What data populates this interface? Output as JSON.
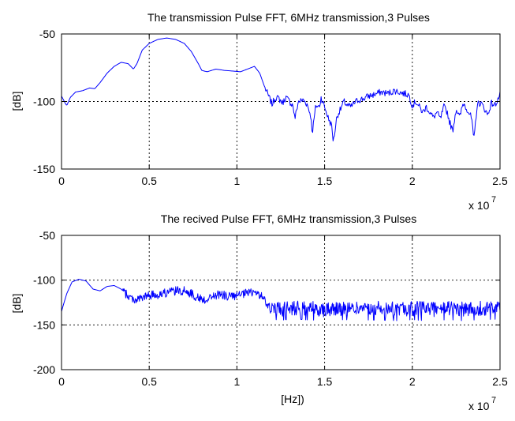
{
  "chart_data": [
    {
      "type": "line",
      "title": "The transmission Pulse FFT, 6MHz transmission,3 Pulses",
      "xlabel": "",
      "ylabel": "[dB]",
      "x_multiplier": "x 10",
      "x_exponent": "7",
      "xlim": [
        0,
        2.5
      ],
      "ylim": [
        -150,
        -50
      ],
      "xticks": [
        0,
        0.5,
        1,
        1.5,
        2,
        2.5
      ],
      "xtick_labels": [
        "0",
        "0.5",
        "1",
        "1.5",
        "2",
        "2.5"
      ],
      "yticks": [
        -150,
        -100,
        -50
      ],
      "ytick_labels": [
        "-150",
        "-100",
        "-50"
      ],
      "grid": true,
      "line_color": "#0000ff",
      "series_points": [
        [
          0.0,
          -96
        ],
        [
          0.02,
          -101
        ],
        [
          0.03,
          -103
        ],
        [
          0.05,
          -97
        ],
        [
          0.08,
          -93
        ],
        [
          0.12,
          -92
        ],
        [
          0.16,
          -90
        ],
        [
          0.19,
          -90.5
        ],
        [
          0.22,
          -86
        ],
        [
          0.26,
          -79
        ],
        [
          0.3,
          -74
        ],
        [
          0.34,
          -71
        ],
        [
          0.38,
          -72
        ],
        [
          0.41,
          -76
        ],
        [
          0.43,
          -72
        ],
        [
          0.46,
          -62
        ],
        [
          0.5,
          -57
        ],
        [
          0.55,
          -54
        ],
        [
          0.6,
          -53
        ],
        [
          0.65,
          -54
        ],
        [
          0.7,
          -57
        ],
        [
          0.74,
          -63
        ],
        [
          0.78,
          -72
        ],
        [
          0.8,
          -77
        ],
        [
          0.83,
          -78
        ],
        [
          0.88,
          -76
        ],
        [
          0.93,
          -77
        ],
        [
          0.98,
          -77.5
        ],
        [
          1.02,
          -78
        ],
        [
          1.06,
          -76
        ],
        [
          1.1,
          -74
        ],
        [
          1.13,
          -79
        ],
        [
          1.16,
          -90
        ],
        [
          1.18,
          -96
        ],
        [
          1.2,
          -102
        ],
        [
          1.22,
          -97
        ],
        [
          1.24,
          -98
        ],
        [
          1.26,
          -101
        ],
        [
          1.28,
          -97
        ],
        [
          1.3,
          -100
        ],
        [
          1.32,
          -103
        ],
        [
          1.33,
          -113
        ],
        [
          1.35,
          -100
        ],
        [
          1.38,
          -99
        ],
        [
          1.4,
          -102
        ],
        [
          1.42,
          -110
        ],
        [
          1.43,
          -123
        ],
        [
          1.45,
          -103
        ],
        [
          1.47,
          -104
        ],
        [
          1.48,
          -97
        ],
        [
          1.5,
          -104
        ],
        [
          1.52,
          -112
        ],
        [
          1.54,
          -118
        ],
        [
          1.55,
          -130
        ],
        [
          1.57,
          -111
        ],
        [
          1.59,
          -106
        ],
        [
          1.61,
          -100
        ],
        [
          1.63,
          -103
        ],
        [
          1.65,
          -104
        ],
        [
          1.67,
          -101
        ],
        [
          1.69,
          -99
        ],
        [
          1.72,
          -98
        ],
        [
          1.75,
          -96
        ],
        [
          1.78,
          -95
        ],
        [
          1.82,
          -93
        ],
        [
          1.86,
          -94
        ],
        [
          1.9,
          -92
        ],
        [
          1.95,
          -94
        ],
        [
          1.98,
          -95
        ],
        [
          2.0,
          -103
        ],
        [
          2.02,
          -100
        ],
        [
          2.04,
          -104
        ],
        [
          2.06,
          -108
        ],
        [
          2.08,
          -104
        ],
        [
          2.1,
          -108
        ],
        [
          2.12,
          -112
        ],
        [
          2.14,
          -108
        ],
        [
          2.16,
          -113
        ],
        [
          2.18,
          -104
        ],
        [
          2.2,
          -108
        ],
        [
          2.21,
          -114
        ],
        [
          2.23,
          -122
        ],
        [
          2.25,
          -105
        ],
        [
          2.27,
          -112
        ],
        [
          2.29,
          -101
        ],
        [
          2.31,
          -105
        ],
        [
          2.33,
          -110
        ],
        [
          2.34,
          -114
        ],
        [
          2.35,
          -130
        ],
        [
          2.37,
          -102
        ],
        [
          2.39,
          -101
        ],
        [
          2.41,
          -105
        ],
        [
          2.43,
          -110
        ],
        [
          2.45,
          -101
        ],
        [
          2.47,
          -103
        ],
        [
          2.5,
          -95
        ]
      ],
      "fine_noise": {
        "start_x": 1.16,
        "amplitude_db": 2.5,
        "step": 0.004
      }
    },
    {
      "type": "line",
      "title": "The recived Pulse FFT, 6MHz transmission,3 Pulses",
      "xlabel": "[Hz])",
      "ylabel": "[dB]",
      "x_multiplier": "x 10",
      "x_exponent": "7",
      "xlim": [
        0,
        2.5
      ],
      "ylim": [
        -200,
        -50
      ],
      "xticks": [
        0,
        0.5,
        1,
        1.5,
        2,
        2.5
      ],
      "xtick_labels": [
        "0",
        "0.5",
        "1",
        "1.5",
        "2",
        "2.5"
      ],
      "yticks": [
        -200,
        -150,
        -100,
        -50
      ],
      "ytick_labels": [
        "-200",
        "-150",
        "-100",
        "-50"
      ],
      "grid": true,
      "line_color": "#0000ff",
      "series_points": [
        [
          0.0,
          -135
        ],
        [
          0.01,
          -128
        ],
        [
          0.03,
          -115
        ],
        [
          0.06,
          -102
        ],
        [
          0.1,
          -99
        ],
        [
          0.14,
          -101
        ],
        [
          0.18,
          -110
        ],
        [
          0.22,
          -112
        ],
        [
          0.26,
          -107
        ],
        [
          0.3,
          -106
        ],
        [
          0.34,
          -110
        ],
        [
          0.38,
          -118
        ],
        [
          0.42,
          -122
        ],
        [
          0.46,
          -120
        ],
        [
          0.5,
          -117
        ],
        [
          0.55,
          -116
        ],
        [
          0.6,
          -114
        ],
        [
          0.65,
          -112
        ],
        [
          0.7,
          -112
        ],
        [
          0.74,
          -115
        ],
        [
          0.78,
          -120
        ],
        [
          0.82,
          -122
        ],
        [
          0.86,
          -118
        ],
        [
          0.9,
          -116
        ],
        [
          0.95,
          -118
        ],
        [
          1.0,
          -118
        ],
        [
          1.05,
          -115
        ],
        [
          1.1,
          -113
        ],
        [
          1.14,
          -118
        ],
        [
          1.17,
          -126
        ],
        [
          1.2,
          -130
        ],
        [
          1.25,
          -132
        ],
        [
          1.3,
          -130
        ],
        [
          1.4,
          -131
        ],
        [
          1.5,
          -132
        ],
        [
          1.6,
          -131
        ],
        [
          1.7,
          -132
        ],
        [
          1.8,
          -131
        ],
        [
          1.9,
          -132
        ],
        [
          2.0,
          -131
        ],
        [
          2.1,
          -132
        ],
        [
          2.2,
          -131
        ],
        [
          2.3,
          -132
        ],
        [
          2.4,
          -131
        ],
        [
          2.5,
          -130
        ]
      ],
      "fine_noise": {
        "start_x": 0.35,
        "high_start_x": 1.16,
        "amplitude_db": 5,
        "high_amplitude_db": 9,
        "step": 0.003
      }
    }
  ]
}
